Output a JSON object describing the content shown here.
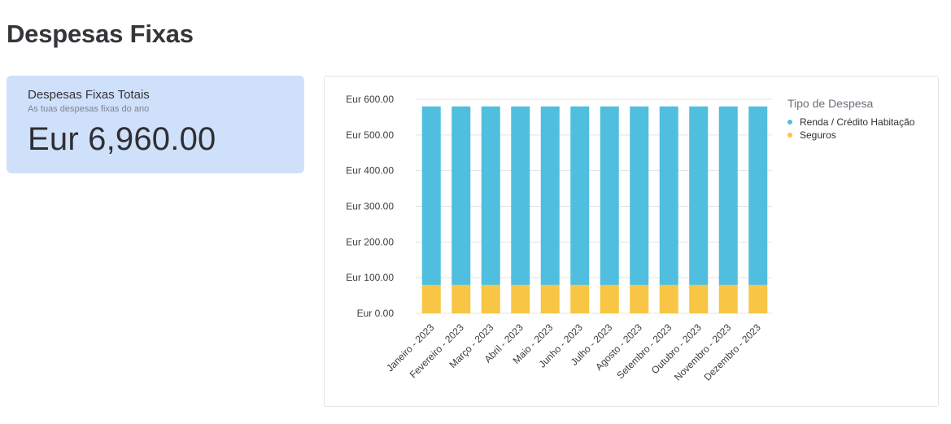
{
  "page": {
    "title": "Despesas Fixas"
  },
  "kpi": {
    "title": "Despesas Fixas Totais",
    "subtitle": "As tuas despesas fixas do ano",
    "value": "Eur 6,960.00"
  },
  "chart_data": {
    "type": "bar",
    "stacked": true,
    "categories": [
      "Janeiro - 2023",
      "Fevereiro - 2023",
      "Março - 2023",
      "Abril - 2023",
      "Maio - 2023",
      "Junho - 2023",
      "Julho - 2023",
      "Agosto - 2023",
      "Setembro - 2023",
      "Outubro - 2023",
      "Novembro - 2023",
      "Dezembro - 2023"
    ],
    "series": [
      {
        "name": "Seguros",
        "color": "#f8c544",
        "values": [
          80,
          80,
          80,
          80,
          80,
          80,
          80,
          80,
          80,
          80,
          80,
          80
        ]
      },
      {
        "name": "Renda / Crédito Habitação",
        "color": "#4fbedf",
        "values": [
          500,
          500,
          500,
          500,
          500,
          500,
          500,
          500,
          500,
          500,
          500,
          500
        ]
      }
    ],
    "legend_title": "Tipo de Despesa",
    "legend_order": [
      "Renda / Crédito Habitação",
      "Seguros"
    ],
    "legend_position": "right",
    "ylim": [
      0,
      600
    ],
    "yticks": [
      "Eur 600.00",
      "Eur 500.00",
      "Eur 400.00",
      "Eur 300.00",
      "Eur 200.00",
      "Eur 100.00",
      "Eur 0.00"
    ],
    "grid": true,
    "xlabel": "",
    "ylabel": ""
  }
}
